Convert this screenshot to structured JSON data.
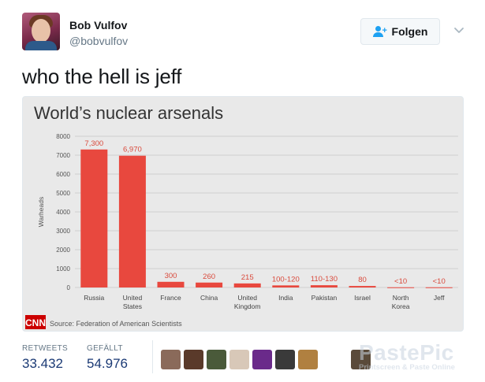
{
  "tweet": {
    "author_name": "Bob Vulfov",
    "author_handle": "@bobvulfov",
    "follow_label": "Folgen",
    "text": "who the hell is jeff"
  },
  "stats": {
    "retweets_label": "RETWEETS",
    "retweets_value": "33.432",
    "likes_label": "GEFÄLLT",
    "likes_value": "54.976"
  },
  "likers": [
    "#8a6a5a",
    "#5a3a2a",
    "#4a5a3a",
    "#d8c8b8",
    "#6a2a8a",
    "#3a3a3a",
    "#b08040",
    "#5a4a3a"
  ],
  "watermark": {
    "title": "PastePic",
    "subtitle": "Printscreen & Paste Online"
  },
  "colors": {
    "bar": "#e8483e",
    "label": "#d94a3c",
    "accent": "#1da1f2",
    "stat_value": "#1b3a75",
    "cnn": "#cc0000"
  },
  "chart_data": {
    "type": "bar",
    "title": "World’s nuclear arsenals",
    "ylabel": "Warheads",
    "ylim": [
      0,
      8000
    ],
    "yticks": [
      0,
      1000,
      2000,
      3000,
      4000,
      5000,
      6000,
      7000,
      8000
    ],
    "categories": [
      [
        "Russia"
      ],
      [
        "United",
        "States"
      ],
      [
        "France"
      ],
      [
        "China"
      ],
      [
        "United",
        "Kingdom"
      ],
      [
        "India"
      ],
      [
        "Pakistan"
      ],
      [
        "Israel"
      ],
      [
        "North",
        "Korea"
      ],
      [
        "Jeff"
      ]
    ],
    "values": [
      7300,
      6970,
      300,
      260,
      215,
      110,
      120,
      80,
      10,
      10
    ],
    "value_labels": [
      "7,300",
      "6,970",
      "300",
      "260",
      "215",
      "100-120",
      "110-130",
      "80",
      "<10",
      "<10"
    ],
    "source": "Source: Federation of American Scientists",
    "logo": "CNN",
    "grid": true
  }
}
